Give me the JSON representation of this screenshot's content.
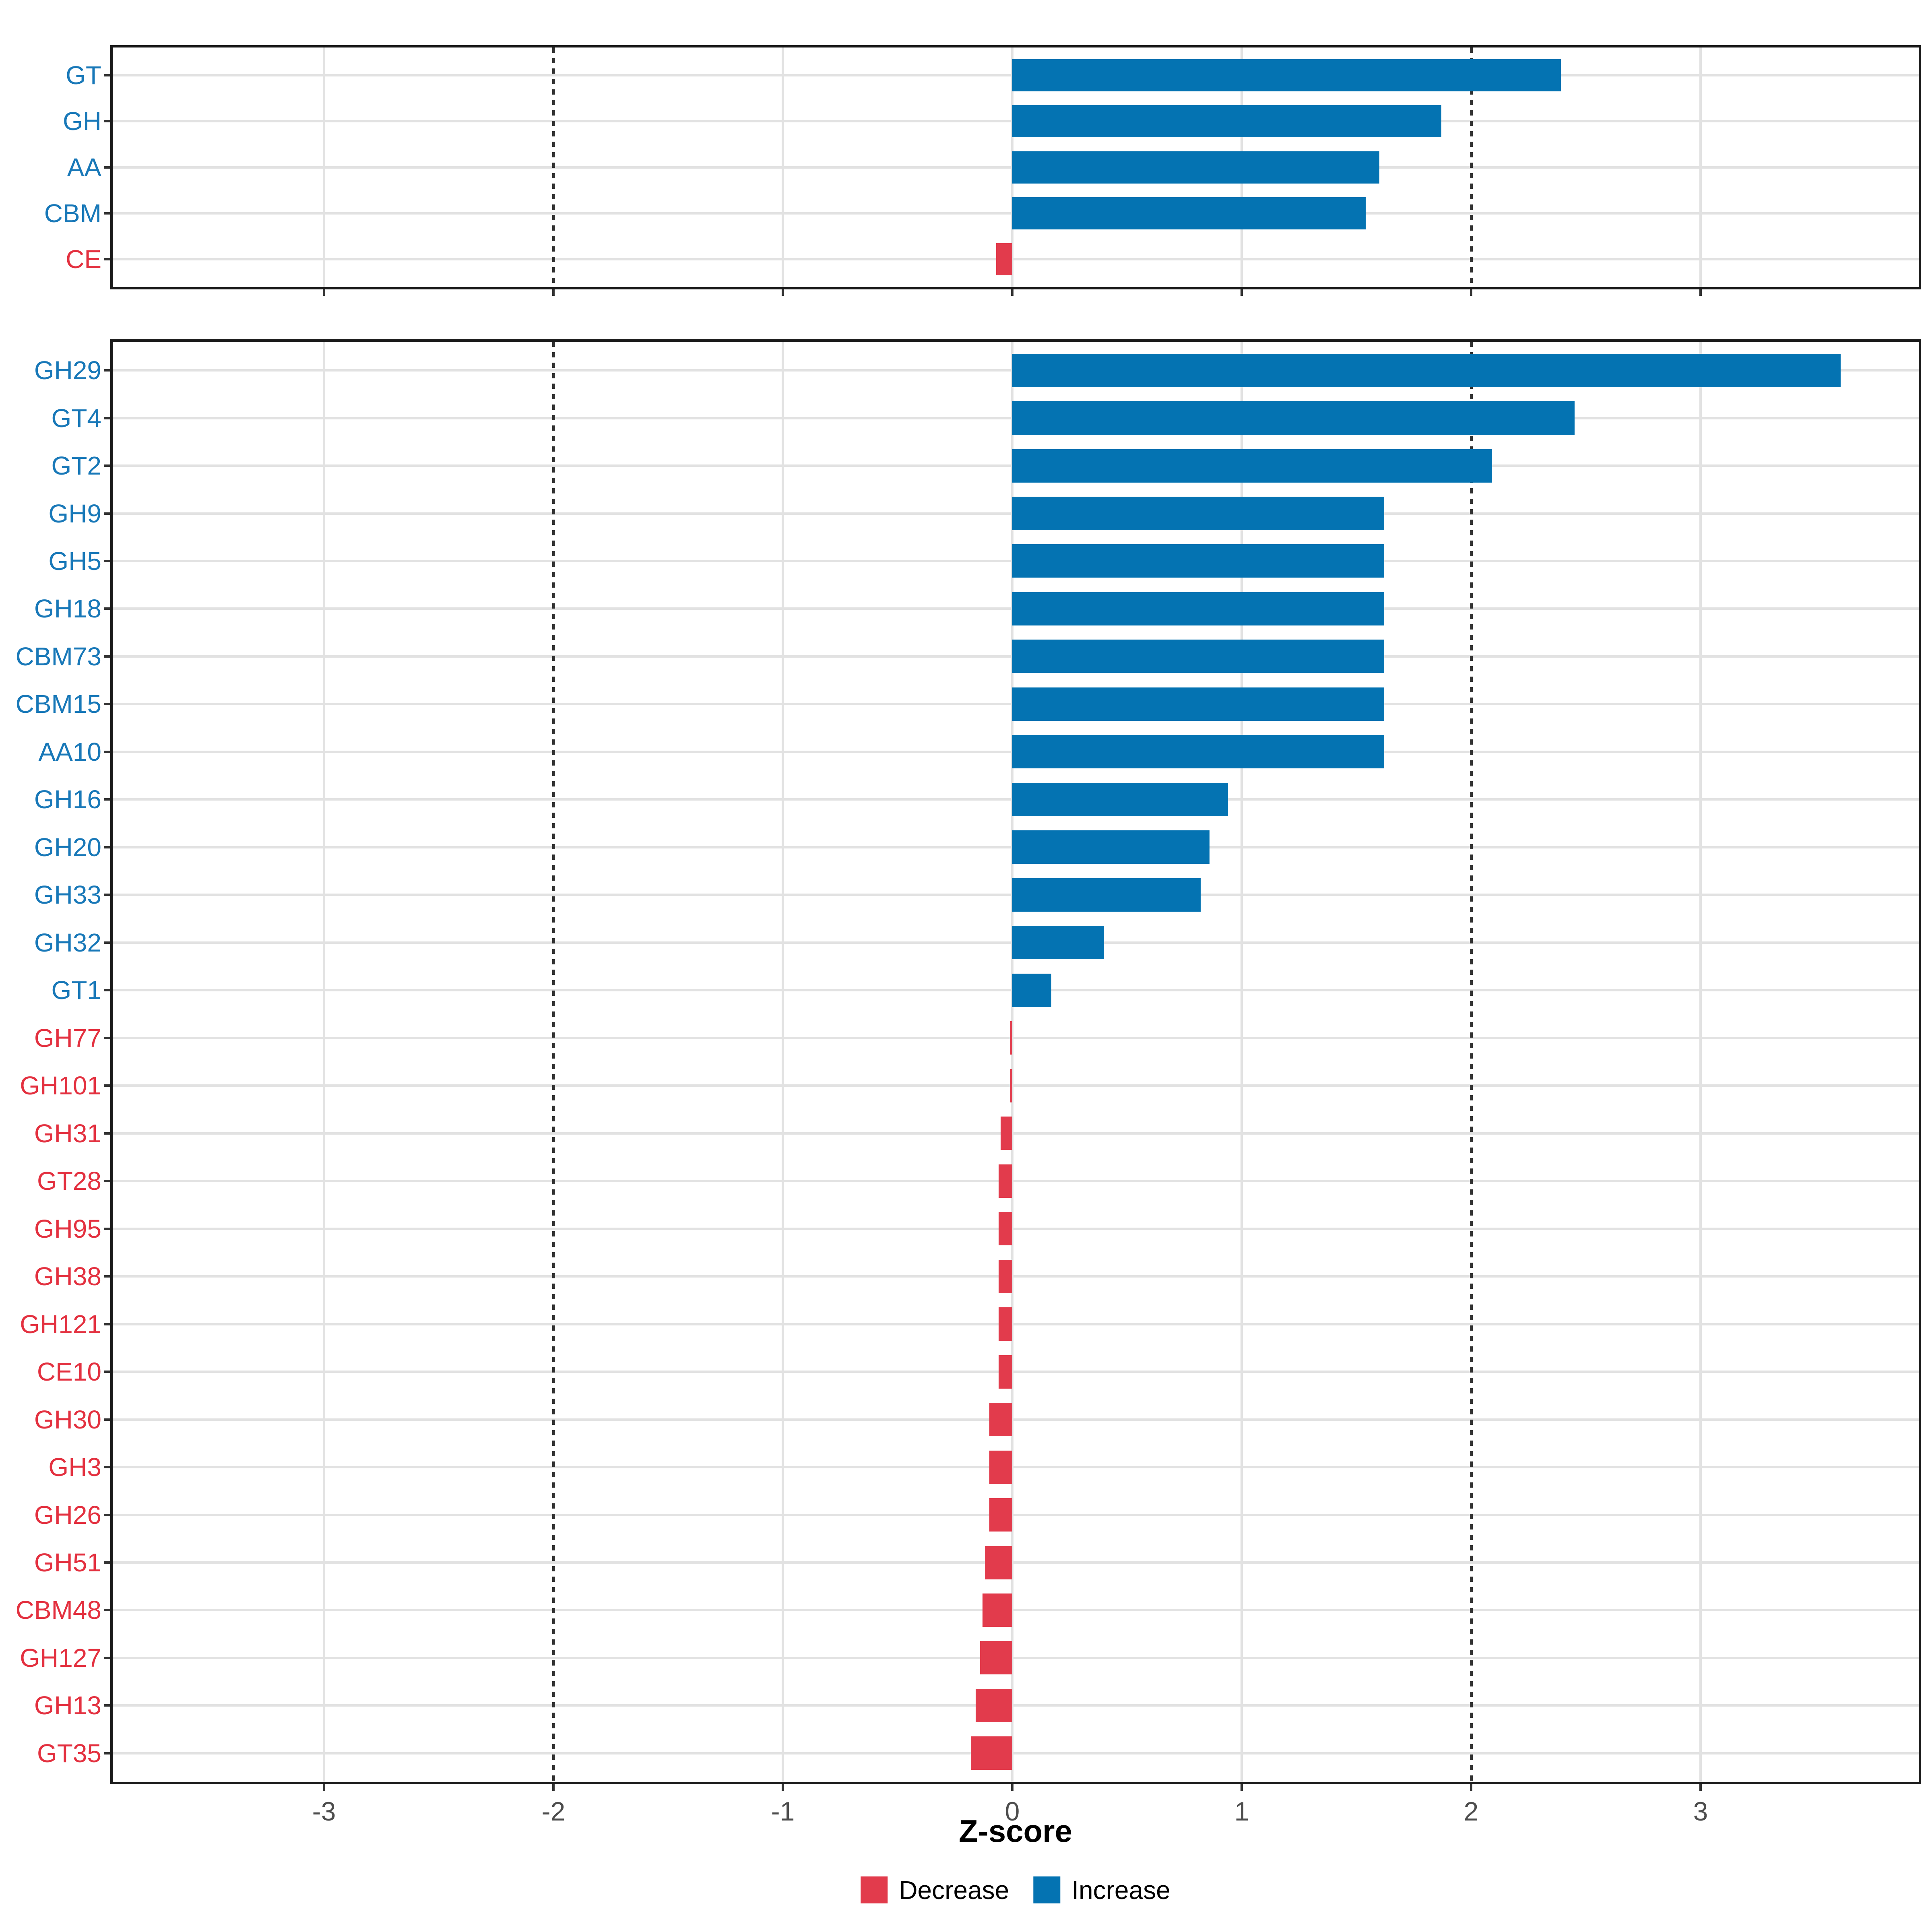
{
  "chart_data": {
    "type": "bar",
    "orientation": "horizontal",
    "title": "",
    "xlabel": "Z-score",
    "ylabel": "",
    "xlim": [
      -3.92,
      3.95
    ],
    "x_ticks": [
      -3,
      -2,
      -1,
      0,
      1,
      2,
      3
    ],
    "x_tick_labels": [
      "-3",
      "-2",
      "-1",
      "0",
      "1",
      "2",
      "3"
    ],
    "grid": "on",
    "reference_lines": [
      -2,
      2
    ],
    "legend_position": "bottom",
    "panels": [
      {
        "name": "cazyme-classes",
        "categories": [
          "GT",
          "GH",
          "AA",
          "CBM",
          "CE"
        ],
        "values": [
          2.39,
          1.87,
          1.6,
          1.54,
          -0.07
        ],
        "directions": [
          "increase",
          "increase",
          "increase",
          "increase",
          "decrease"
        ]
      },
      {
        "name": "cazyme-families",
        "categories": [
          "GH29",
          "GT4",
          "GT2",
          "GH9",
          "GH5",
          "GH18",
          "CBM73",
          "CBM15",
          "AA10",
          "GH16",
          "GH20",
          "GH33",
          "GH32",
          "GT1",
          "GH77",
          "GH101",
          "GH31",
          "GT28",
          "GH95",
          "GH38",
          "GH121",
          "CE10",
          "GH30",
          "GH3",
          "GH26",
          "GH51",
          "CBM48",
          "GH127",
          "GH13",
          "GT35"
        ],
        "values": [
          3.61,
          2.45,
          2.09,
          1.62,
          1.62,
          1.62,
          1.62,
          1.62,
          1.62,
          0.94,
          0.86,
          0.82,
          0.4,
          0.17,
          -0.01,
          -0.01,
          -0.05,
          -0.06,
          -0.06,
          -0.06,
          -0.06,
          -0.06,
          -0.1,
          -0.1,
          -0.1,
          -0.12,
          -0.13,
          -0.14,
          -0.16,
          -0.18
        ],
        "directions": [
          "increase",
          "increase",
          "increase",
          "increase",
          "increase",
          "increase",
          "increase",
          "increase",
          "increase",
          "increase",
          "increase",
          "increase",
          "increase",
          "increase",
          "decrease",
          "decrease",
          "decrease",
          "decrease",
          "decrease",
          "decrease",
          "decrease",
          "decrease",
          "decrease",
          "decrease",
          "decrease",
          "decrease",
          "decrease",
          "decrease",
          "decrease",
          "decrease"
        ]
      }
    ]
  },
  "axis": {
    "title": "Z-score"
  },
  "legend": {
    "decrease_label": "Decrease",
    "increase_label": "Increase"
  },
  "colors": {
    "increase_bar": "#0473b2",
    "decrease_bar": "#e23b4c",
    "increase_text": "#1878b8",
    "decrease_text": "#e3303f",
    "grid": "#e2e2e2",
    "reference_line": "#333333",
    "tick": "#333333",
    "tick_label": "#4d4d4d",
    "panel_border": "#1a1a1a"
  }
}
